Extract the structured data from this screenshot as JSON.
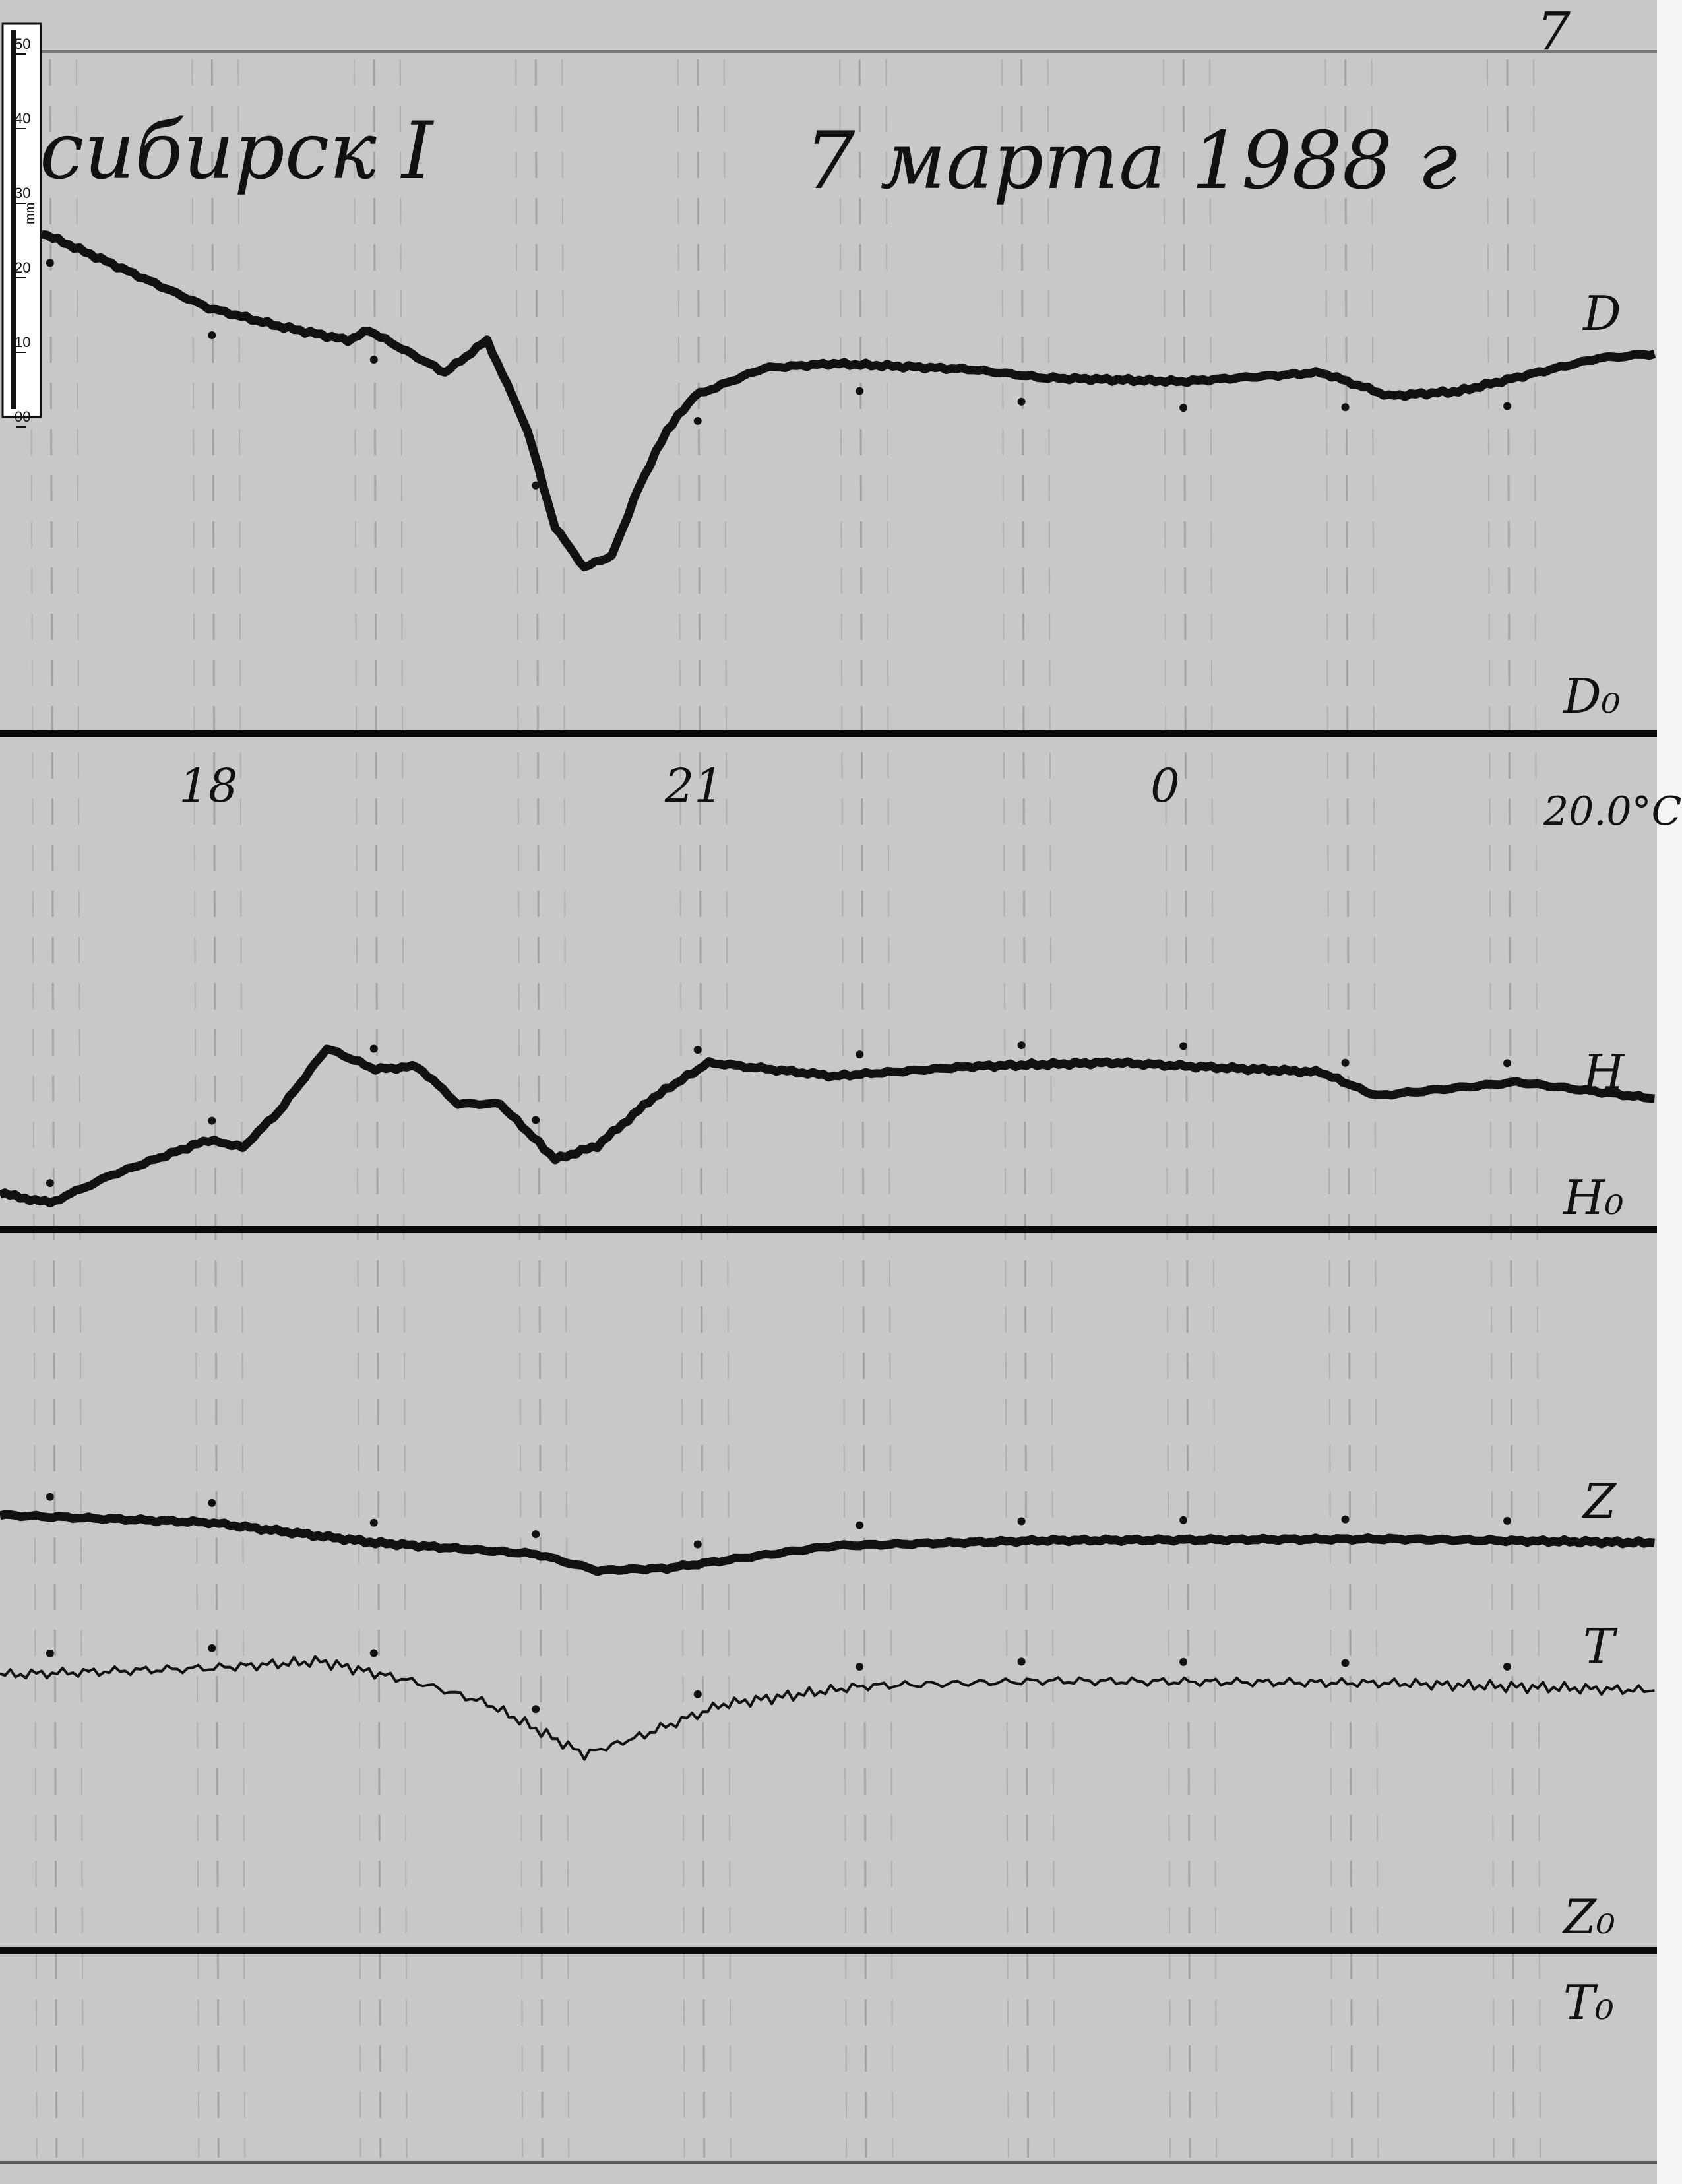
{
  "header": {
    "station": "сибирск I",
    "date": "7 марта 1988 г",
    "sheet_number": "7"
  },
  "ruler": {
    "ticks": [
      "50",
      "40",
      "30",
      "20",
      "10",
      "00"
    ],
    "unit": "mm"
  },
  "chart_data": {
    "type": "line",
    "title": "",
    "xlabel": "",
    "ylabel": "",
    "x_unit": "hours",
    "xlim": [
      16.7,
      26.9
    ],
    "x_tick_labels": [
      {
        "hour": 18,
        "label": "18"
      },
      {
        "hour": 21,
        "label": "21"
      },
      {
        "hour": 24,
        "label": "0"
      }
    ],
    "hour_marks": [
      17,
      18,
      19,
      20,
      21,
      22,
      23,
      24,
      25,
      26
    ],
    "temperature_label": "20.0°С",
    "grid": true,
    "colors": {
      "trace": "#111111",
      "paper": "#c9c9c9",
      "baseline": "#0a0a0a"
    },
    "series": [
      {
        "name": "D",
        "baseline_label": "D₀",
        "unit": "mm above baseline",
        "x": [
          16.95,
          17.38,
          17.98,
          18.41,
          18.84,
          18.97,
          19.44,
          19.7,
          19.95,
          20.12,
          20.3,
          20.47,
          20.64,
          20.81,
          20.98,
          21.41,
          21.84,
          22.7,
          23.13,
          23.99,
          24.85,
          25.27,
          25.7,
          26.13,
          26.56,
          26.91
        ],
        "y": [
          66.7,
          62.6,
          56.7,
          54.3,
          52.4,
          53.7,
          48.1,
          52.4,
          40.4,
          27.4,
          22.2,
          23.7,
          33.0,
          40.4,
          45.0,
          48.7,
          49.3,
          48.5,
          47.4,
          46.9,
          48.1,
          45.0,
          45.6,
          47.8,
          50.0,
          50.6
        ]
      },
      {
        "name": "H",
        "baseline_label": "H₀",
        "unit": "mm above baseline",
        "x": [
          16.69,
          17.0,
          17.38,
          17.98,
          18.19,
          18.41,
          18.71,
          19.01,
          19.27,
          19.52,
          19.78,
          20.12,
          20.38,
          20.73,
          21.07,
          21.84,
          22.7,
          23.56,
          24.85,
          25.19,
          26.06,
          26.91
        ],
        "y": [
          4.8,
          3.5,
          7.2,
          11.9,
          10.9,
          15.6,
          24.1,
          21.3,
          21.7,
          16.7,
          16.7,
          9.3,
          11.1,
          17.6,
          22.2,
          20.4,
          21.7,
          22.2,
          20.9,
          17.8,
          19.6,
          17.4
        ]
      },
      {
        "name": "Z",
        "baseline_label": "Z₀",
        "unit": "mm above baseline",
        "x": [
          16.69,
          17.98,
          19.01,
          20.0,
          20.38,
          20.81,
          21.84,
          23.13,
          25.27,
          26.91
        ],
        "y": [
          58.0,
          57.0,
          54.3,
          52.8,
          50.6,
          50.9,
          53.9,
          54.6,
          54.8,
          54.3
        ]
      },
      {
        "name": "T",
        "baseline_label": "T₀",
        "unit": "mm above baseline",
        "x": [
          16.69,
          17.98,
          18.67,
          19.27,
          19.7,
          20.3,
          20.64,
          21.16,
          22.02,
          23.13,
          25.27,
          26.91
        ],
        "y": [
          36.7,
          37.6,
          38.5,
          35.7,
          32.9,
          26.1,
          28.5,
          32.8,
          35.2,
          35.9,
          35.6,
          34.6
        ]
      }
    ]
  }
}
